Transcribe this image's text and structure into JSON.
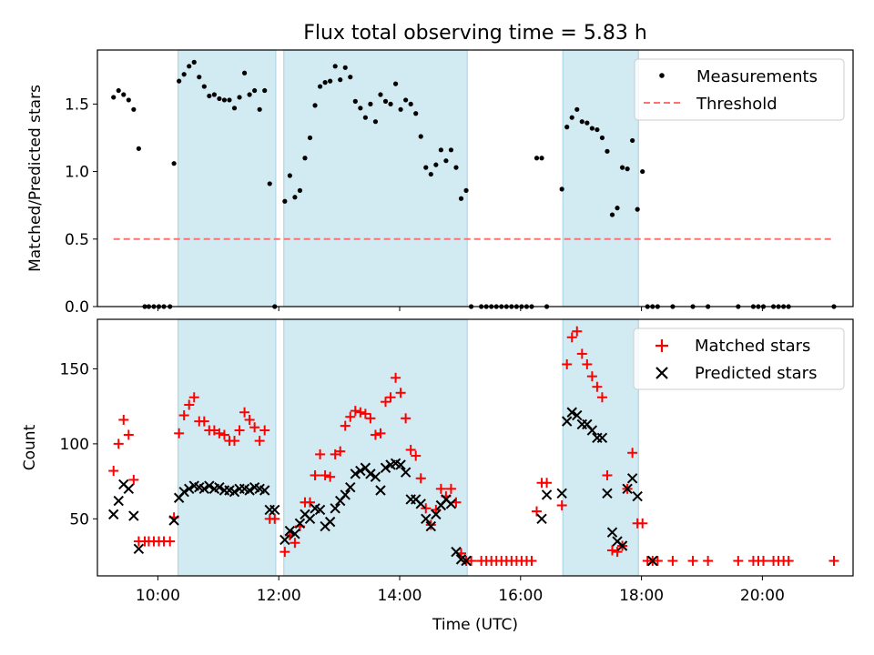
{
  "title": "Flux total observing time = 5.83 h",
  "xlabel": "Time (UTC)",
  "colors": {
    "shade": "#add8e6",
    "matched": "#ff0000",
    "predicted": "#000000",
    "threshold": "#ff7070",
    "measurements": "#000000"
  },
  "chart_data": [
    {
      "type": "scatter",
      "panel": "top",
      "title": "Flux total observing time = 5.83 h",
      "xlabel": "",
      "ylabel": "Matched/Predicted stars",
      "xlim": [
        "09:00",
        "21:30"
      ],
      "ylim": [
        0,
        1.9
      ],
      "yticks": [
        0.0,
        0.5,
        1.0,
        1.5
      ],
      "ytick_labels": [
        "0.0",
        "0.5",
        "1.0",
        "1.5"
      ],
      "legend": "top-right",
      "shaded_intervals": [
        [
          "10:20",
          "11:57"
        ],
        [
          "12:05",
          "15:07"
        ],
        [
          "16:42",
          "17:57"
        ]
      ],
      "series": [
        {
          "name": "Measurements",
          "kind": "scatter",
          "x": [
            "09:16",
            "09:21",
            "09:26",
            "09:31",
            "09:36",
            "09:41",
            "09:47",
            "09:51",
            "09:56",
            "10:01",
            "10:06",
            "10:12",
            "10:16",
            "10:21",
            "10:26",
            "10:31",
            "10:36",
            "10:41",
            "10:46",
            "10:51",
            "10:56",
            "11:01",
            "11:06",
            "11:11",
            "11:16",
            "11:21",
            "11:26",
            "11:31",
            "11:36",
            "11:41",
            "11:46",
            "11:51",
            "11:56",
            "12:06",
            "12:11",
            "12:16",
            "12:21",
            "12:26",
            "12:31",
            "12:36",
            "12:41",
            "12:46",
            "12:51",
            "12:56",
            "13:01",
            "13:06",
            "13:11",
            "13:16",
            "13:21",
            "13:26",
            "13:31",
            "13:36",
            "13:41",
            "13:46",
            "13:51",
            "13:56",
            "14:01",
            "14:06",
            "14:11",
            "14:16",
            "14:21",
            "14:26",
            "14:31",
            "14:36",
            "14:41",
            "14:46",
            "14:51",
            "14:56",
            "15:01",
            "15:06",
            "15:11",
            "15:21",
            "15:26",
            "15:31",
            "15:36",
            "15:41",
            "15:46",
            "15:51",
            "15:56",
            "16:01",
            "16:06",
            "16:11",
            "16:16",
            "16:21",
            "16:26",
            "16:41",
            "16:46",
            "16:51",
            "16:56",
            "17:01",
            "17:06",
            "17:11",
            "17:16",
            "17:21",
            "17:26",
            "17:31",
            "17:36",
            "17:41",
            "17:46",
            "17:51",
            "17:56",
            "18:01",
            "18:06",
            "18:11",
            "18:16",
            "18:31",
            "18:51",
            "19:06",
            "19:36",
            "19:51",
            "19:56",
            "20:01",
            "20:11",
            "20:16",
            "20:21",
            "20:26",
            "21:11"
          ],
          "y": [
            1.55,
            1.6,
            1.57,
            1.53,
            1.46,
            1.17,
            0,
            0,
            0,
            0,
            0,
            0,
            1.06,
            1.67,
            1.72,
            1.78,
            1.81,
            1.7,
            1.63,
            1.56,
            1.57,
            1.54,
            1.53,
            1.53,
            1.47,
            1.55,
            1.73,
            1.57,
            1.6,
            1.46,
            1.6,
            0.91,
            0,
            0.78,
            0.97,
            0.81,
            0.86,
            1.1,
            1.25,
            1.49,
            1.63,
            1.66,
            1.67,
            1.78,
            1.68,
            1.77,
            1.7,
            1.52,
            1.47,
            1.4,
            1.5,
            1.37,
            1.57,
            1.52,
            1.5,
            1.65,
            1.46,
            1.53,
            1.5,
            1.43,
            1.26,
            1.03,
            0.98,
            1.05,
            1.16,
            1.08,
            1.16,
            1.03,
            0.8,
            0.86,
            0,
            0,
            0,
            0,
            0,
            0,
            0,
            0,
            0,
            0,
            0,
            0,
            1.1,
            1.1,
            0,
            0.87,
            1.33,
            1.4,
            1.46,
            1.37,
            1.36,
            1.32,
            1.31,
            1.25,
            1.15,
            0.68,
            0.73,
            1.03,
            1.02,
            1.23,
            0.72,
            1.0,
            0,
            0,
            0,
            0,
            0,
            0,
            0,
            0,
            0,
            0,
            0,
            0,
            0,
            0,
            0
          ]
        },
        {
          "name": "Threshold",
          "kind": "line",
          "x": [
            "09:16",
            "21:11"
          ],
          "y": [
            0.5,
            0.5
          ]
        }
      ]
    },
    {
      "type": "scatter",
      "panel": "bottom",
      "title": "",
      "xlabel": "Time (UTC)",
      "ylabel": "Count",
      "xlim": [
        "09:00",
        "21:30"
      ],
      "ylim": [
        12,
        183
      ],
      "yticks": [
        50,
        100,
        150
      ],
      "ytick_labels": [
        "50",
        "100",
        "150"
      ],
      "xticks": [
        "10:00",
        "12:00",
        "14:00",
        "16:00",
        "18:00",
        "20:00"
      ],
      "xtick_labels": [
        "10:00",
        "12:00",
        "14:00",
        "16:00",
        "18:00",
        "20:00"
      ],
      "legend": "top-right",
      "shaded_intervals": [
        [
          "10:20",
          "11:57"
        ],
        [
          "12:05",
          "15:07"
        ],
        [
          "16:42",
          "17:57"
        ]
      ],
      "series": [
        {
          "name": "Matched stars",
          "kind": "plus",
          "x": [
            "09:16",
            "09:21",
            "09:26",
            "09:31",
            "09:36",
            "09:41",
            "09:47",
            "09:51",
            "09:56",
            "10:01",
            "10:06",
            "10:12",
            "10:16",
            "10:21",
            "10:26",
            "10:31",
            "10:36",
            "10:41",
            "10:46",
            "10:51",
            "10:56",
            "11:01",
            "11:06",
            "11:11",
            "11:16",
            "11:21",
            "11:26",
            "11:31",
            "11:36",
            "11:41",
            "11:46",
            "11:51",
            "11:56",
            "12:06",
            "12:11",
            "12:16",
            "12:21",
            "12:26",
            "12:31",
            "12:36",
            "12:41",
            "12:46",
            "12:51",
            "12:56",
            "13:01",
            "13:06",
            "13:11",
            "13:16",
            "13:21",
            "13:26",
            "13:31",
            "13:36",
            "13:41",
            "13:46",
            "13:51",
            "13:56",
            "14:01",
            "14:06",
            "14:11",
            "14:16",
            "14:21",
            "14:26",
            "14:31",
            "14:36",
            "14:41",
            "14:46",
            "14:51",
            "14:56",
            "15:01",
            "15:06",
            "15:11",
            "15:21",
            "15:26",
            "15:31",
            "15:36",
            "15:41",
            "15:46",
            "15:51",
            "15:56",
            "16:01",
            "16:06",
            "16:11",
            "16:16",
            "16:21",
            "16:26",
            "16:41",
            "16:46",
            "16:51",
            "16:56",
            "17:01",
            "17:06",
            "17:11",
            "17:16",
            "17:21",
            "17:26",
            "17:31",
            "17:36",
            "17:41",
            "17:46",
            "17:51",
            "17:56",
            "18:01",
            "18:06",
            "18:11",
            "18:16",
            "18:31",
            "18:51",
            "19:06",
            "19:36",
            "19:51",
            "19:56",
            "20:01",
            "20:11",
            "20:16",
            "20:21",
            "20:26",
            "21:11"
          ],
          "y": [
            82,
            100,
            116,
            106,
            76,
            35,
            35,
            35,
            35,
            35,
            35,
            35,
            51,
            107,
            119,
            126,
            131,
            115,
            115,
            109,
            109,
            107,
            106,
            102,
            102,
            109,
            121,
            116,
            111,
            102,
            109,
            50,
            50,
            28,
            39,
            34,
            45,
            61,
            61,
            79,
            93,
            79,
            78,
            93,
            95,
            112,
            118,
            122,
            121,
            120,
            117,
            106,
            107,
            128,
            131,
            144,
            134,
            117,
            96,
            92,
            77,
            57,
            46,
            56,
            70,
            65,
            70,
            61,
            27,
            22,
            22,
            22,
            22,
            22,
            22,
            22,
            22,
            22,
            22,
            22,
            22,
            22,
            55,
            74,
            74,
            59,
            153,
            171,
            175,
            160,
            153,
            145,
            138,
            131,
            79,
            29,
            28,
            32,
            70,
            94,
            47,
            47,
            22,
            22,
            22,
            22,
            22,
            22,
            22,
            22,
            22,
            22,
            22,
            22,
            22,
            22,
            22
          ]
        },
        {
          "name": "Predicted stars",
          "kind": "cross",
          "x": [
            "09:16",
            "09:21",
            "09:26",
            "09:31",
            "09:36",
            "09:41",
            "10:16",
            "10:21",
            "10:26",
            "10:31",
            "10:36",
            "10:41",
            "10:46",
            "10:51",
            "10:56",
            "11:01",
            "11:06",
            "11:11",
            "11:16",
            "11:21",
            "11:26",
            "11:31",
            "11:36",
            "11:41",
            "11:46",
            "11:51",
            "11:56",
            "12:06",
            "12:11",
            "12:16",
            "12:21",
            "12:26",
            "12:31",
            "12:36",
            "12:41",
            "12:46",
            "12:51",
            "12:56",
            "13:01",
            "13:06",
            "13:11",
            "13:16",
            "13:21",
            "13:26",
            "13:31",
            "13:36",
            "13:41",
            "13:46",
            "13:51",
            "13:56",
            "14:01",
            "14:06",
            "14:11",
            "14:16",
            "14:21",
            "14:26",
            "14:31",
            "14:36",
            "14:41",
            "14:46",
            "14:51",
            "14:56",
            "15:01",
            "15:06",
            "16:21",
            "16:26",
            "16:41",
            "16:46",
            "16:51",
            "16:56",
            "17:01",
            "17:06",
            "17:11",
            "17:16",
            "17:21",
            "17:26",
            "17:31",
            "17:36",
            "17:41",
            "17:46",
            "17:51",
            "17:56",
            "18:11"
          ],
          "y": [
            53,
            62,
            73,
            70,
            52,
            30,
            49,
            64,
            68,
            70,
            72,
            71,
            70,
            72,
            70,
            71,
            69,
            69,
            68,
            70,
            70,
            69,
            71,
            70,
            69,
            56,
            56,
            36,
            42,
            40,
            47,
            53,
            50,
            57,
            56,
            45,
            48,
            57,
            62,
            66,
            71,
            80,
            82,
            84,
            80,
            78,
            69,
            84,
            86,
            87,
            86,
            81,
            63,
            63,
            60,
            50,
            45,
            53,
            59,
            63,
            60,
            28,
            23,
            22,
            50,
            66,
            67,
            115,
            121,
            119,
            113,
            113,
            109,
            104,
            104,
            67,
            41,
            35,
            32,
            70,
            77,
            65,
            22
          ]
        }
      ]
    }
  ]
}
